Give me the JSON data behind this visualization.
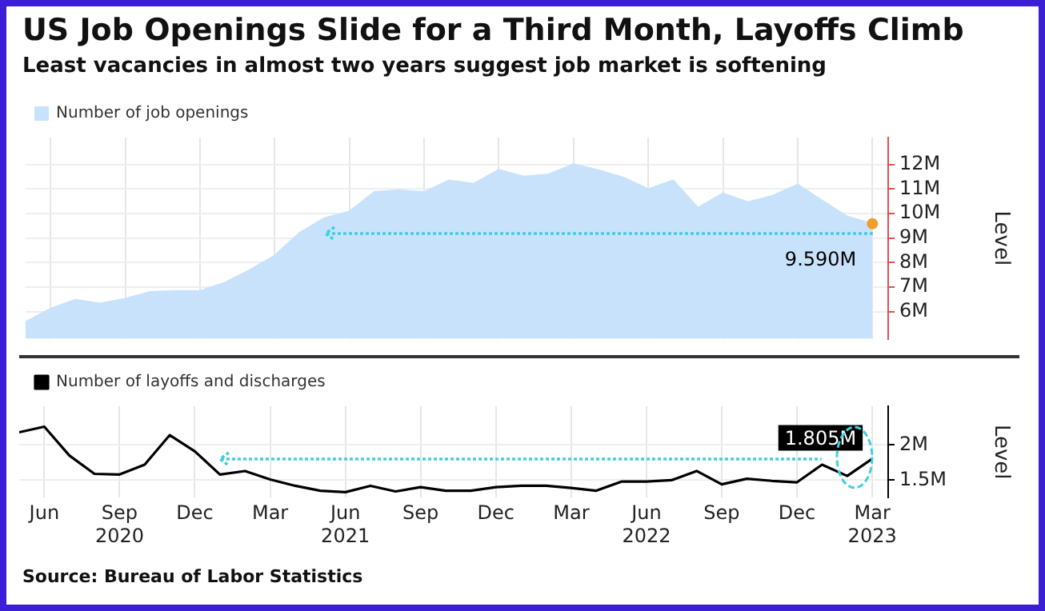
{
  "chart_data": [
    {
      "type": "area",
      "title": "US Job Openings Slide for a Third Month, Layoffs Climb",
      "subtitle": "Least vacancies in almost two years suggest job market is softening",
      "ylabel": "Level",
      "x": [
        "2020-05",
        "2020-06",
        "2020-07",
        "2020-08",
        "2020-09",
        "2020-10",
        "2020-11",
        "2020-12",
        "2021-01",
        "2021-02",
        "2021-03",
        "2021-04",
        "2021-05",
        "2021-06",
        "2021-07",
        "2021-08",
        "2021-09",
        "2021-10",
        "2021-11",
        "2021-12",
        "2022-01",
        "2022-02",
        "2022-03",
        "2022-04",
        "2022-05",
        "2022-06",
        "2022-07",
        "2022-08",
        "2022-09",
        "2022-10",
        "2022-11",
        "2022-12",
        "2023-01",
        "2023-02",
        "2023-03"
      ],
      "series": [
        {
          "name": "Number of job openings",
          "color": "#c9e2fb",
          "values": [
            5.58,
            6.13,
            6.49,
            6.34,
            6.53,
            6.81,
            6.85,
            6.85,
            7.19,
            7.7,
            8.29,
            9.22,
            9.82,
            10.09,
            10.88,
            10.96,
            10.88,
            11.36,
            11.22,
            11.79,
            11.51,
            11.6,
            12.02,
            11.77,
            11.47,
            11.0,
            11.36,
            10.24,
            10.83,
            10.47,
            10.73,
            11.19,
            10.52,
            9.88,
            9.59
          ],
          "value_labels": [
            null,
            null,
            null,
            null,
            null,
            null,
            null,
            null,
            null,
            null,
            null,
            null,
            null,
            null,
            null,
            null,
            null,
            null,
            null,
            null,
            null,
            null,
            null,
            null,
            null,
            null,
            null,
            null,
            null,
            null,
            null,
            null,
            null,
            null,
            "9.590M"
          ]
        }
      ],
      "xlim": [
        "2020-05",
        "2023-03-20"
      ],
      "xticks": [
        {
          "value": "2020-06",
          "label": null
        },
        {
          "value": "2020-09",
          "label": null
        },
        {
          "value": "2020-12",
          "label": null
        },
        {
          "value": "2021-03",
          "label": null
        },
        {
          "value": "2021-06",
          "label": null
        },
        {
          "value": "2021-09",
          "label": null
        },
        {
          "value": "2021-12",
          "label": null
        },
        {
          "value": "2022-03",
          "label": null
        },
        {
          "value": "2022-06",
          "label": null
        },
        {
          "value": "2022-09",
          "label": null
        },
        {
          "value": "2022-12",
          "label": null
        },
        {
          "value": "2023-03",
          "label": null
        }
      ],
      "ylim": [
        4.9,
        13.1
      ],
      "yticks": [
        {
          "value": 6,
          "label": "6M"
        },
        {
          "value": 7,
          "label": "7M"
        },
        {
          "value": 8,
          "label": "8M"
        },
        {
          "value": 9,
          "label": "9M"
        },
        {
          "value": 10,
          "label": "10M"
        },
        {
          "value": 11,
          "label": "11M"
        },
        {
          "value": 12,
          "label": "12M"
        }
      ],
      "tick_labels": "y",
      "grid": true,
      "legend": "top left"
    },
    {
      "type": "line",
      "ylabel": "Level",
      "annotations": [
        "Source: Bureau of Labor Statistics"
      ],
      "x": [
        "2020-05",
        "2020-06",
        "2020-07",
        "2020-08",
        "2020-09",
        "2020-10",
        "2020-11",
        "2020-12",
        "2021-01",
        "2021-02",
        "2021-03",
        "2021-04",
        "2021-05",
        "2021-06",
        "2021-07",
        "2021-08",
        "2021-09",
        "2021-10",
        "2021-11",
        "2021-12",
        "2022-01",
        "2022-02",
        "2022-03",
        "2022-04",
        "2022-05",
        "2022-06",
        "2022-07",
        "2022-08",
        "2022-09",
        "2022-10",
        "2022-11",
        "2022-12",
        "2023-01",
        "2023-02",
        "2023-03"
      ],
      "series": [
        {
          "name": "Number of layoffs and discharges",
          "color": "#000000",
          "values": [
            2.18,
            2.26,
            1.85,
            1.59,
            1.58,
            1.72,
            2.14,
            1.91,
            1.58,
            1.63,
            1.51,
            1.42,
            1.35,
            1.33,
            1.42,
            1.34,
            1.4,
            1.35,
            1.35,
            1.4,
            1.42,
            1.42,
            1.39,
            1.35,
            1.48,
            1.48,
            1.5,
            1.63,
            1.44,
            1.52,
            1.49,
            1.47,
            1.72,
            1.56,
            1.805
          ],
          "value_labels": [
            null,
            null,
            null,
            null,
            null,
            null,
            null,
            null,
            null,
            null,
            null,
            null,
            null,
            null,
            null,
            null,
            null,
            null,
            null,
            null,
            null,
            null,
            null,
            null,
            null,
            null,
            null,
            null,
            null,
            null,
            null,
            null,
            null,
            null,
            "1.805M"
          ]
        }
      ],
      "xlim": [
        "2020-05",
        "2023-03-20"
      ],
      "xticks": [
        {
          "value": "2020-06",
          "label": "Jun"
        },
        {
          "value": "2020-09",
          "label": "Sep 2020"
        },
        {
          "value": "2020-12",
          "label": "Dec"
        },
        {
          "value": "2021-03",
          "label": "Mar"
        },
        {
          "value": "2021-06",
          "label": "Jun 2021"
        },
        {
          "value": "2021-09",
          "label": "Sep"
        },
        {
          "value": "2021-12",
          "label": "Dec"
        },
        {
          "value": "2022-03",
          "label": "Mar"
        },
        {
          "value": "2022-06",
          "label": "Jun 2022"
        },
        {
          "value": "2022-09",
          "label": "Sep"
        },
        {
          "value": "2022-12",
          "label": "Dec"
        },
        {
          "value": "2023-03",
          "label": "Mar 2023"
        }
      ],
      "ylim": [
        1.25,
        2.55
      ],
      "yticks": [
        {
          "value": 1.5,
          "label": "1.5M"
        },
        {
          "value": 2,
          "label": "2M"
        }
      ],
      "grid": true,
      "legend": "top left"
    }
  ]
}
